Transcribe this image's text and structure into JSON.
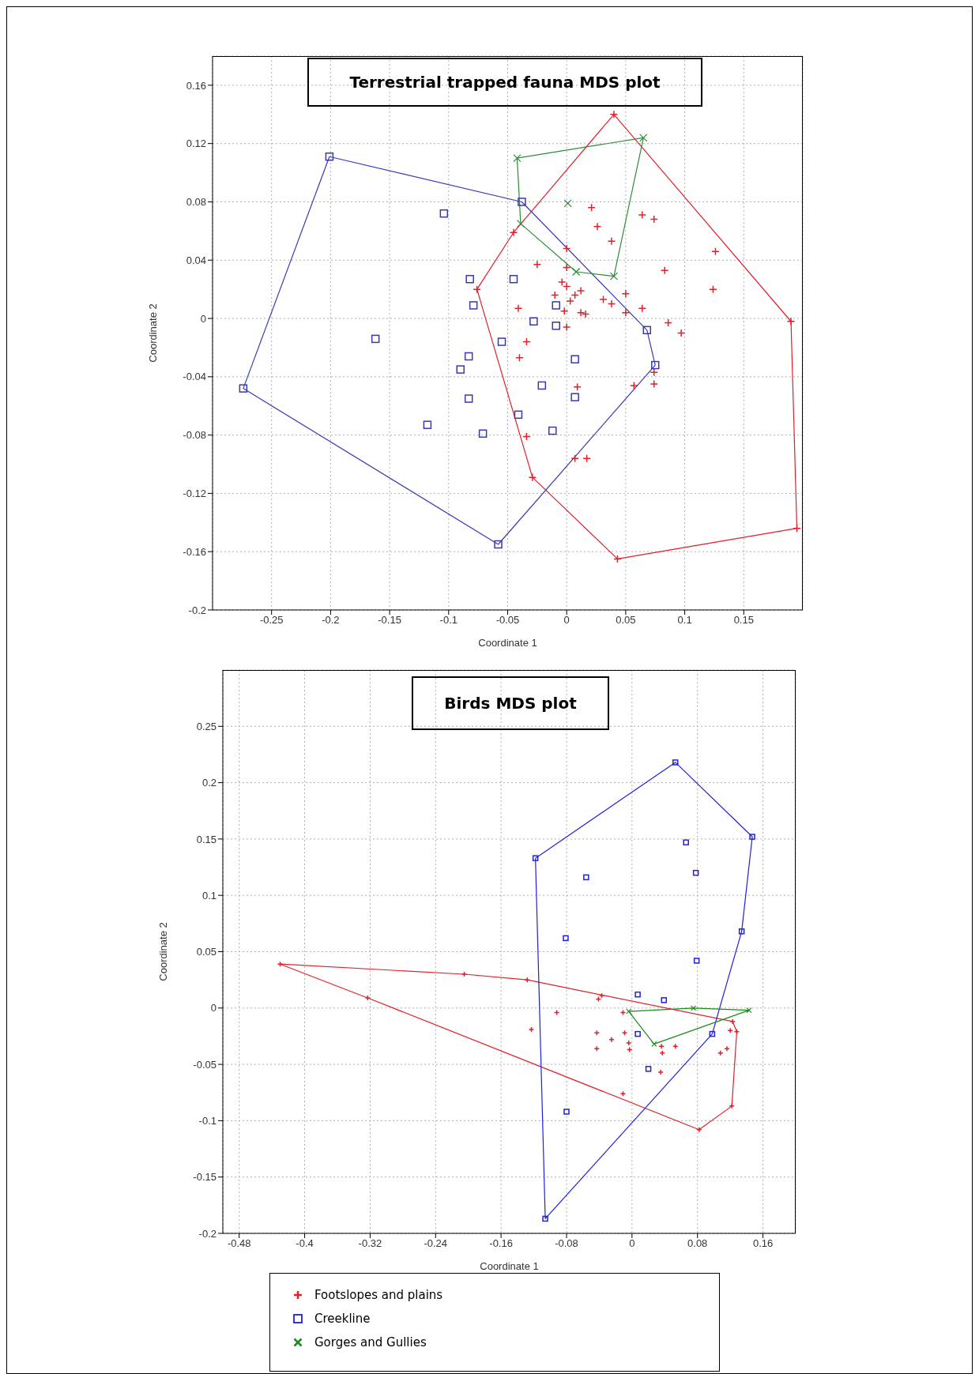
{
  "chart_data": [
    {
      "type": "scatter",
      "title": "Terrestrial trapped fauna MDS plot",
      "xlabel": "Coordinate 1",
      "ylabel": "Coordinate 2",
      "xlim": [
        -0.3,
        0.2
      ],
      "xticks": [
        -0.25,
        -0.2,
        -0.15,
        -0.1,
        -0.05,
        0,
        0.05,
        0.1,
        0.15
      ],
      "ylim": [
        -0.2,
        0.18
      ],
      "yticks": [
        -0.2,
        -0.16,
        -0.12,
        -0.08,
        -0.04,
        0,
        0.04,
        0.08,
        0.12,
        0.16
      ],
      "grid": true,
      "legend": false,
      "series": [
        {
          "type": "scatter",
          "marker": "cross",
          "color": "#e0202a",
          "x": [
            0.04,
            -0.045,
            -0.076,
            0.021,
            0.026,
            0.038,
            0.064,
            0.074,
            0.0,
            -0.025,
            0.0,
            -0.004,
            0.0,
            0.012,
            0.007,
            0.003,
            -0.01,
            -0.041,
            -0.002,
            0.012,
            0.016,
            0.031,
            0.038,
            0.05,
            0.05,
            0.064,
            0.083,
            0.126,
            0.124,
            0.0,
            0.086,
            0.097,
            0.19,
            -0.034,
            -0.04,
            0.009,
            0.057,
            0.074,
            0.074,
            -0.034,
            0.007,
            0.017,
            -0.029,
            0.195,
            0.043
          ],
          "values": [
            0.14,
            0.059,
            0.02,
            0.076,
            0.063,
            0.053,
            0.071,
            0.068,
            0.048,
            0.037,
            0.035,
            0.025,
            0.022,
            0.019,
            0.016,
            0.012,
            0.016,
            0.007,
            0.005,
            0.004,
            0.003,
            0.013,
            0.01,
            0.017,
            0.004,
            0.007,
            0.033,
            0.046,
            0.02,
            -0.006,
            -0.003,
            -0.01,
            -0.002,
            -0.016,
            -0.027,
            -0.047,
            -0.046,
            -0.037,
            -0.045,
            -0.081,
            -0.096,
            -0.096,
            -0.109,
            -0.144,
            -0.165
          ]
        },
        {
          "type": "scatter",
          "marker": "square",
          "color": "#3a3ab0",
          "x": [
            -0.274,
            -0.201,
            -0.162,
            -0.118,
            -0.104,
            -0.09,
            -0.083,
            -0.083,
            -0.082,
            -0.079,
            -0.071,
            -0.058,
            -0.055,
            -0.045,
            -0.041,
            -0.038,
            -0.028,
            -0.021,
            -0.012,
            -0.009,
            -0.009,
            0.007,
            0.007,
            0.068,
            0.075
          ],
          "values": [
            -0.048,
            0.111,
            -0.014,
            -0.073,
            0.072,
            -0.035,
            -0.026,
            -0.055,
            0.027,
            0.009,
            -0.079,
            -0.155,
            -0.016,
            0.027,
            -0.066,
            0.08,
            -0.002,
            -0.046,
            -0.077,
            0.009,
            -0.005,
            -0.028,
            -0.054,
            -0.008,
            -0.032
          ]
        },
        {
          "type": "scatter",
          "marker": "x",
          "color": "#2e8b3a",
          "x": [
            -0.042,
            0.065,
            0.001,
            -0.039,
            0.008,
            0.04
          ],
          "values": [
            0.11,
            0.124,
            0.079,
            0.065,
            0.032,
            0.029
          ]
        },
        {
          "type": "line",
          "marker": "none",
          "color": "#e0202a",
          "x": [
            -0.076,
            -0.045,
            0.04,
            0.19,
            0.195
          ],
          "values": [
            0.02,
            0.059,
            0.14,
            -0.002,
            -0.144
          ]
        },
        {
          "type": "line",
          "marker": "none",
          "color": "#e0202a",
          "x": [
            -0.076,
            -0.029,
            0.043,
            0.195
          ],
          "values": [
            0.02,
            -0.109,
            -0.165,
            -0.144
          ]
        },
        {
          "type": "line",
          "marker": "none",
          "color": "#3a3ab0",
          "x": [
            -0.274,
            -0.201,
            -0.038,
            0.068,
            0.075
          ],
          "values": [
            -0.048,
            0.111,
            0.08,
            -0.008,
            -0.032
          ]
        },
        {
          "type": "line",
          "marker": "none",
          "color": "#3a3ab0",
          "x": [
            -0.274,
            -0.058,
            0.075
          ],
          "values": [
            -0.048,
            -0.155,
            -0.032
          ]
        },
        {
          "type": "line",
          "marker": "none",
          "color": "#2e8b3a",
          "x": [
            -0.042,
            0.065
          ],
          "values": [
            0.11,
            0.124
          ]
        },
        {
          "type": "line",
          "marker": "none",
          "color": "#2e8b3a",
          "x": [
            -0.042,
            -0.039,
            0.008,
            0.04,
            0.065
          ],
          "values": [
            0.11,
            0.065,
            0.032,
            0.029,
            0.124
          ]
        }
      ]
    },
    {
      "type": "scatter",
      "title": "Birds MDS plot",
      "xlabel": "Coordinate 1",
      "ylabel": "Coordinate 2",
      "xlim": [
        -0.5,
        0.2
      ],
      "xticks": [
        -0.48,
        -0.4,
        -0.32,
        -0.24,
        -0.16,
        -0.08,
        0,
        0.08,
        0.16
      ],
      "ylim": [
        -0.2,
        0.3
      ],
      "yticks": [
        -0.2,
        -0.15,
        -0.1,
        -0.05,
        0,
        0.05,
        0.1,
        0.15,
        0.2,
        0.25
      ],
      "grid": true,
      "legend": "bottom",
      "series": [
        {
          "type": "scatter",
          "name": "Footslopes and plains",
          "marker": "cross",
          "color": "#e0202a",
          "x": [
            -0.43,
            -0.323,
            -0.205,
            -0.128,
            -0.123,
            -0.092,
            -0.043,
            -0.043,
            -0.041,
            -0.037,
            -0.025,
            -0.011,
            -0.011,
            -0.009,
            -0.004,
            -0.003,
            0.035,
            0.036,
            0.037,
            0.053,
            0.082,
            0.108,
            0.116,
            0.12,
            0.123,
            0.128,
            0.122
          ],
          "values": [
            0.039,
            0.009,
            0.03,
            0.025,
            -0.019,
            -0.004,
            -0.022,
            -0.036,
            0.008,
            0.011,
            -0.028,
            -0.004,
            -0.076,
            -0.022,
            -0.031,
            -0.037,
            -0.057,
            -0.034,
            -0.04,
            -0.034,
            -0.108,
            -0.04,
            -0.036,
            -0.02,
            -0.012,
            -0.021,
            -0.087
          ]
        },
        {
          "type": "scatter",
          "name": "Creekline",
          "marker": "square",
          "color": "#2020e0",
          "x": [
            -0.118,
            0.053,
            0.147,
            0.066,
            0.078,
            -0.056,
            -0.081,
            0.134,
            0.079,
            0.007,
            0.039,
            0.007,
            0.098,
            0.02,
            -0.08,
            -0.106
          ],
          "values": [
            0.133,
            0.218,
            0.152,
            0.147,
            0.12,
            0.116,
            0.062,
            0.068,
            0.042,
            0.012,
            0.007,
            -0.023,
            -0.023,
            -0.054,
            -0.092,
            -0.187
          ]
        },
        {
          "type": "scatter",
          "name": "Gorges and Gullies",
          "marker": "x",
          "color": "#1a8a1a",
          "x": [
            -0.004,
            0.075,
            0.143,
            0.027
          ],
          "values": [
            -0.003,
            0.0,
            -0.002,
            -0.032
          ]
        },
        {
          "type": "line",
          "marker": "none",
          "color": "#e0202a",
          "x": [
            -0.43,
            -0.205,
            -0.128,
            0.123,
            0.128
          ],
          "values": [
            0.039,
            0.03,
            0.025,
            -0.012,
            -0.021
          ]
        },
        {
          "type": "line",
          "marker": "none",
          "color": "#e0202a",
          "x": [
            -0.43,
            -0.323,
            0.082,
            0.122,
            0.128
          ],
          "values": [
            0.039,
            0.009,
            -0.108,
            -0.087,
            -0.021
          ]
        },
        {
          "type": "line",
          "marker": "none",
          "color": "#2020e0",
          "x": [
            -0.118,
            0.053,
            0.147
          ],
          "values": [
            0.133,
            0.218,
            0.152
          ]
        },
        {
          "type": "line",
          "marker": "none",
          "color": "#2020e0",
          "x": [
            -0.118,
            -0.106,
            0.098,
            0.134,
            0.147
          ],
          "values": [
            0.133,
            -0.187,
            -0.023,
            0.068,
            0.152
          ]
        },
        {
          "type": "line",
          "marker": "none",
          "color": "#1a8a1a",
          "x": [
            -0.004,
            0.075,
            0.143
          ],
          "values": [
            -0.003,
            0.0,
            -0.002
          ]
        },
        {
          "type": "line",
          "marker": "none",
          "color": "#1a8a1a",
          "x": [
            -0.004,
            0.027,
            0.143
          ],
          "values": [
            -0.003,
            -0.032,
            -0.002
          ]
        }
      ]
    }
  ]
}
